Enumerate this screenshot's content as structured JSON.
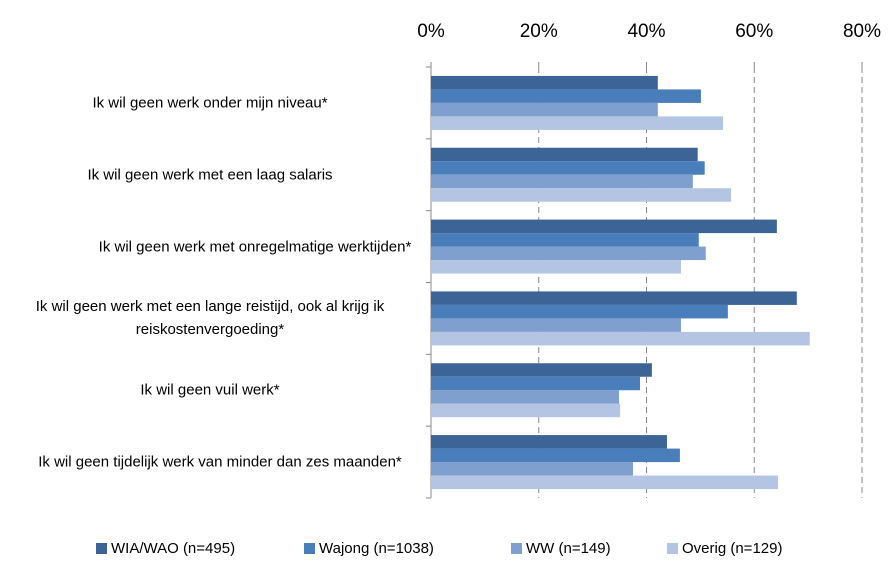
{
  "chart_data": {
    "type": "bar",
    "orientation": "horizontal",
    "categories": [
      "Ik wil geen werk onder mijn niveau*",
      "Ik wil geen werk met een laag salaris",
      "Ik wil geen werk met onregelmatige werktijden*",
      "Ik wil geen werk met een lange reistijd, ook al krijg ik reiskostenvergoeding*",
      "Ik wil geen vuil werk*",
      "Ik wil geen tijdelijk werk van minder dan zes maanden*"
    ],
    "series": [
      {
        "name": "WIA/WAO (n=495)",
        "color": "#3c6496",
        "values": [
          42.1,
          49.5,
          64.2,
          67.9,
          41.0,
          43.8
        ]
      },
      {
        "name": "Wajong (n=1038)",
        "color": "#4a7ebb",
        "values": [
          50.1,
          50.8,
          49.7,
          55.1,
          38.8,
          46.2
        ]
      },
      {
        "name": "WW (n=149)",
        "color": "#7f9fcf",
        "values": [
          42.1,
          48.6,
          51.0,
          46.4,
          34.9,
          37.5
        ]
      },
      {
        "name": "Overig (n=129)",
        "color": "#b3c5e2",
        "values": [
          54.2,
          55.7,
          46.4,
          70.3,
          35.1,
          64.4
        ]
      }
    ],
    "xlim": [
      0,
      80
    ],
    "xticks": [
      {
        "value": 0,
        "label": "0%"
      },
      {
        "value": 20,
        "label": "20%"
      },
      {
        "value": 40,
        "label": "40%"
      },
      {
        "value": 60,
        "label": "60%"
      },
      {
        "value": 80,
        "label": "80%"
      }
    ],
    "grid": true,
    "legend": "bottom"
  }
}
